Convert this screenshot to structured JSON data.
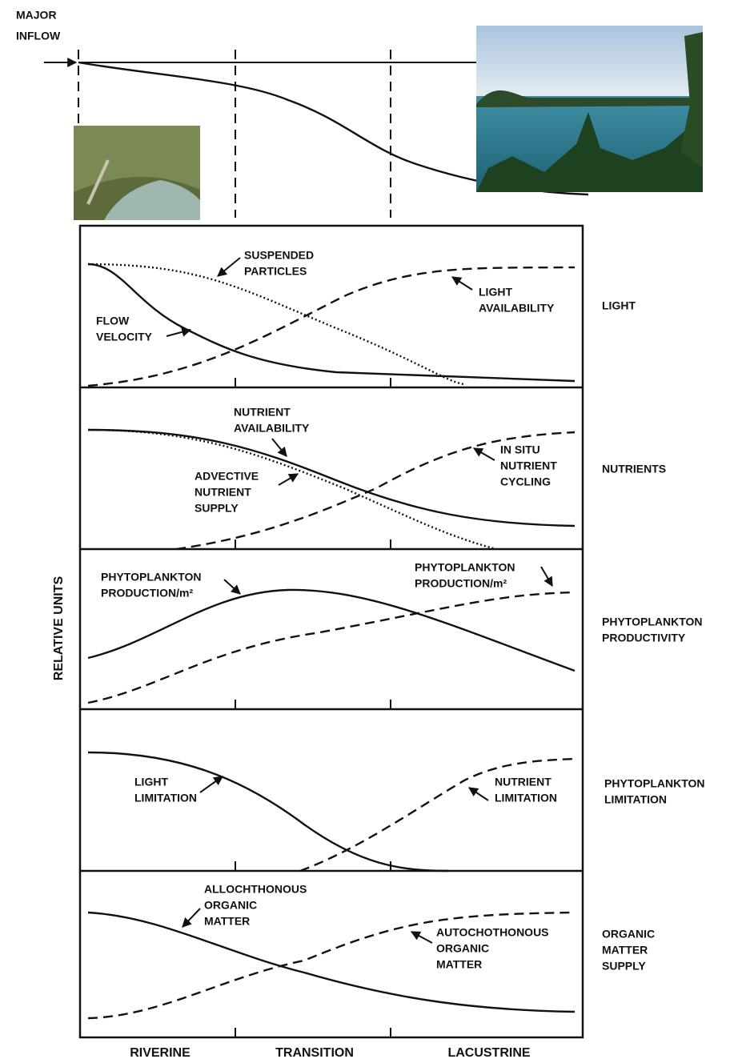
{
  "header": {
    "inflow_label": [
      "MAJOR",
      "INFLOW"
    ]
  },
  "y_axis_label": "RELATIVE UNITS",
  "zones": [
    "RIVERINE",
    "TRANSITION",
    "LACUSTRINE"
  ],
  "panels": [
    {
      "title": [
        "LIGHT"
      ],
      "labels": [
        {
          "lines": [
            "SUSPENDED",
            "PARTICLES"
          ]
        },
        {
          "lines": [
            "LIGHT",
            "AVAILABILITY"
          ]
        },
        {
          "lines": [
            "FLOW",
            "VELOCITY"
          ]
        }
      ]
    },
    {
      "title": [
        "NUTRIENTS"
      ],
      "labels": [
        {
          "lines": [
            "NUTRIENT",
            "AVAILABILITY"
          ]
        },
        {
          "lines": [
            "ADVECTIVE",
            "NUTRIENT",
            "SUPPLY"
          ]
        },
        {
          "lines": [
            "IN SITU",
            "NUTRIENT",
            "CYCLING"
          ]
        }
      ]
    },
    {
      "title": [
        "PHYTOPLANKTON",
        "PRODUCTIVITY"
      ],
      "labels": [
        {
          "lines": [
            "PHYTOPLANKTON",
            "PRODUCTION/m²"
          ]
        },
        {
          "lines": [
            "PHYTOPLANKTON",
            "PRODUCTION/m²"
          ]
        }
      ]
    },
    {
      "title": [
        "PHYTOPLANKTON",
        "LIMITATION"
      ],
      "labels": [
        {
          "lines": [
            "LIGHT",
            "LIMITATION"
          ]
        },
        {
          "lines": [
            "NUTRIENT",
            "LIMITATION"
          ]
        }
      ]
    },
    {
      "title": [
        "ORGANIC",
        "MATTER",
        "SUPPLY"
      ],
      "labels": [
        {
          "lines": [
            "ALLOCHTHONOUS",
            "ORGANIC",
            "MATTER"
          ]
        },
        {
          "lines": [
            "AUTOCHOTHONOUS",
            "ORGANIC",
            "MATTER"
          ]
        }
      ]
    }
  ]
}
